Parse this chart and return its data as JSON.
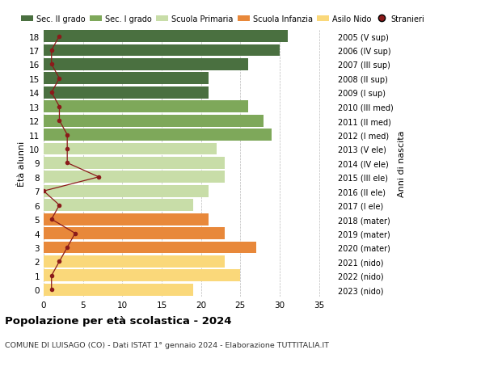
{
  "ages": [
    0,
    1,
    2,
    3,
    4,
    5,
    6,
    7,
    8,
    9,
    10,
    11,
    12,
    13,
    14,
    15,
    16,
    17,
    18
  ],
  "bar_values": [
    19,
    25,
    23,
    27,
    23,
    21,
    19,
    21,
    23,
    23,
    22,
    29,
    28,
    26,
    21,
    21,
    26,
    30,
    31
  ],
  "stranieri": [
    1,
    1,
    2,
    3,
    4,
    1,
    2,
    0,
    7,
    3,
    3,
    3,
    2,
    2,
    1,
    2,
    1,
    1,
    2
  ],
  "right_labels": [
    "2023 (nido)",
    "2022 (nido)",
    "2021 (nido)",
    "2020 (mater)",
    "2019 (mater)",
    "2018 (mater)",
    "2017 (I ele)",
    "2016 (II ele)",
    "2015 (III ele)",
    "2014 (IV ele)",
    "2013 (V ele)",
    "2012 (I med)",
    "2011 (II med)",
    "2010 (III med)",
    "2009 (I sup)",
    "2008 (II sup)",
    "2007 (III sup)",
    "2006 (IV sup)",
    "2005 (V sup)"
  ],
  "bar_colors": [
    "#FAD87A",
    "#FAD87A",
    "#FAD87A",
    "#E8883A",
    "#E8883A",
    "#E8883A",
    "#C8DDA8",
    "#C8DDA8",
    "#C8DDA8",
    "#C8DDA8",
    "#C8DDA8",
    "#7EA85A",
    "#7EA85A",
    "#7EA85A",
    "#4A7040",
    "#4A7040",
    "#4A7040",
    "#4A7040",
    "#4A7040"
  ],
  "legend_labels": [
    "Sec. II grado",
    "Sec. I grado",
    "Scuola Primaria",
    "Scuola Infanzia",
    "Asilo Nido",
    "Stranieri"
  ],
  "legend_colors": [
    "#4A7040",
    "#7EA85A",
    "#C8DDA8",
    "#E8883A",
    "#FAD87A",
    "#8B1A1A"
  ],
  "stranieri_color": "#8B1A1A",
  "title": "Popolazione per età scolastica - 2024",
  "subtitle": "COMUNE DI LUISAGO (CO) - Dati ISTAT 1° gennaio 2024 - Elaborazione TUTTITALIA.IT",
  "ylabel_left": "Ètà alunni",
  "ylabel_right": "Anni di nascita",
  "xlim": [
    0,
    37
  ],
  "ylim": [
    -0.5,
    18.5
  ],
  "bg_color": "#FFFFFF",
  "grid_color": "#BBBBBB"
}
